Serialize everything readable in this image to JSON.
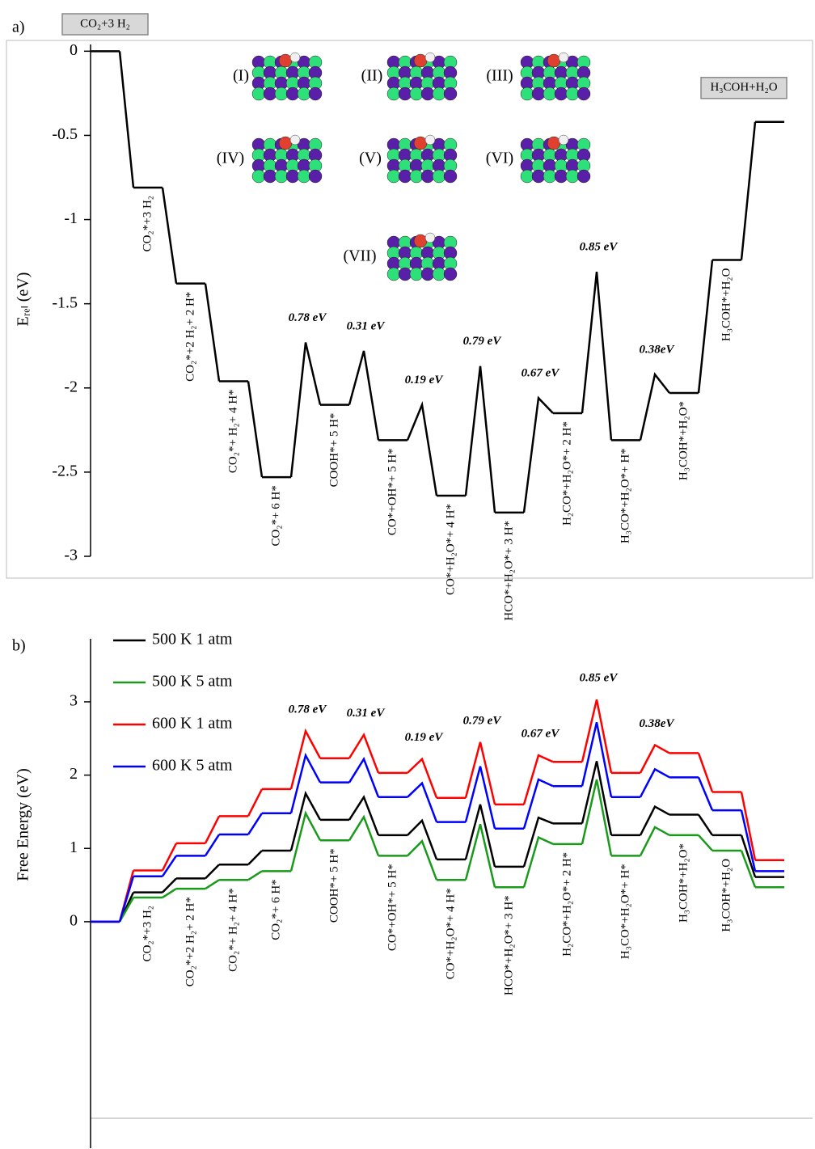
{
  "chart_data": [
    {
      "type": "line",
      "panel_label": "a)",
      "y_label": "Eᵣₑₗ (eV)",
      "ylim": [
        -3,
        0.04
      ],
      "yticks": [
        0,
        -0.5,
        -1,
        -1.5,
        -2,
        -2.5,
        -3
      ],
      "categories": [
        "CO₂+3 H₂",
        "CO₂*+3 H₂",
        "CO₂*+2 H₂+ 2 H*",
        "CO₂*+ H₂+ 4 H*",
        "CO₂*+ 6 H*",
        "COOH*+ 5 H*",
        "CO*+OH*+ 5 H*",
        "CO*+H₂O*+ 4 H*",
        "HCO*+H₂O*+ 3 H*",
        "H₂CO*+H₂O*+ 2 H*",
        "H₃CO*+H₂O*+ H*",
        "H₃COH*+H₂O*",
        "H₃COH*+H₂O",
        "H₃COH+H₂O"
      ],
      "series": [
        {
          "color": "#000000",
          "values": [
            0,
            -0.81,
            -1.38,
            -1.96,
            -2.53,
            -2.1,
            -2.31,
            -2.64,
            -2.74,
            -2.15,
            -2.31,
            -2.03,
            -1.24,
            -0.42
          ],
          "ts_values": [
            -1.73,
            -1.78,
            -2.1,
            -1.87,
            -2.06,
            -1.31,
            -1.92
          ]
        }
      ],
      "barriers": [
        {
          "value": 0.78,
          "label": "0.78 eV"
        },
        {
          "value": 0.31,
          "label": "0.31 eV"
        },
        {
          "value": 0.19,
          "label": "0.19 eV"
        },
        {
          "value": 0.79,
          "label": "0.79 eV"
        },
        {
          "value": 0.67,
          "label": "0.67 eV"
        },
        {
          "value": 0.85,
          "label": "0.85 eV"
        },
        {
          "value": 0.38,
          "label": "0.38eV"
        }
      ],
      "insets": [
        "(I)",
        "(II)",
        "(III)",
        "(IV)",
        "(V)",
        "(VI)",
        "(VII)"
      ]
    },
    {
      "type": "line",
      "panel_label": "b)",
      "y_label": "Free Energy (eV)",
      "ylim": [
        -3.09,
        3.86
      ],
      "yticks": [
        0,
        1,
        2,
        3
      ],
      "categories": [
        null,
        "CO₂*+3 H₂",
        "CO₂*+2 H₂+ 2 H*",
        "CO₂*+ H₂+ 4 H*",
        "CO₂*+ 6 H*",
        "COOH*+ 5 H*",
        "CO*+OH*+ 5 H*",
        "CO*+H₂O*+ 4 H*",
        "HCO*+H₂O*+ 3 H*",
        "H₂CO*+H₂O*+ 2 H*",
        "H₃CO*+H₂O*+ H*",
        "H₃COH*+H₂O*",
        "H₃COH*+H₂O",
        null
      ],
      "series": [
        {
          "name": "500 K 1 atm",
          "color": "#000000",
          "values": [
            0,
            0.4,
            0.59,
            0.78,
            0.97,
            1.39,
            1.18,
            0.85,
            0.75,
            1.34,
            1.18,
            1.46,
            1.18,
            0.61
          ],
          "ts_values": [
            1.75,
            1.7,
            1.38,
            1.6,
            1.42,
            2.19,
            1.57
          ]
        },
        {
          "name": "500 K 5 atm",
          "color": "#1a9a1a",
          "values": [
            0,
            0.33,
            0.45,
            0.57,
            0.69,
            1.11,
            0.9,
            0.57,
            0.47,
            1.06,
            0.9,
            1.18,
            0.97,
            0.47
          ],
          "ts_values": [
            1.48,
            1.43,
            1.1,
            1.33,
            1.15,
            1.94,
            1.29
          ]
        },
        {
          "name": "600 K 1 atm",
          "color": "#ff0000",
          "values": [
            0,
            0.7,
            1.07,
            1.44,
            1.81,
            2.23,
            2.03,
            1.69,
            1.6,
            2.18,
            2.03,
            2.3,
            1.77,
            0.84
          ],
          "ts_values": [
            2.6,
            2.55,
            2.22,
            2.45,
            2.27,
            3.03,
            2.41
          ]
        },
        {
          "name": "600 K 5 atm",
          "color": "#0000ff",
          "values": [
            0,
            0.62,
            0.9,
            1.19,
            1.48,
            1.9,
            1.7,
            1.36,
            1.27,
            1.85,
            1.7,
            1.97,
            1.52,
            0.69
          ],
          "ts_values": [
            2.27,
            2.22,
            1.89,
            2.12,
            1.94,
            2.72,
            2.08
          ]
        }
      ],
      "barriers": [
        {
          "value": 0.78,
          "label": "0.78 eV"
        },
        {
          "value": 0.31,
          "label": "0.31 eV"
        },
        {
          "value": 0.19,
          "label": "0.19 eV"
        },
        {
          "value": 0.79,
          "label": "0.79 eV"
        },
        {
          "value": 0.67,
          "label": "0.67 eV"
        },
        {
          "value": 0.85,
          "label": "0.85 eV"
        },
        {
          "value": 0.38,
          "label": "0.38eV"
        }
      ]
    }
  ]
}
